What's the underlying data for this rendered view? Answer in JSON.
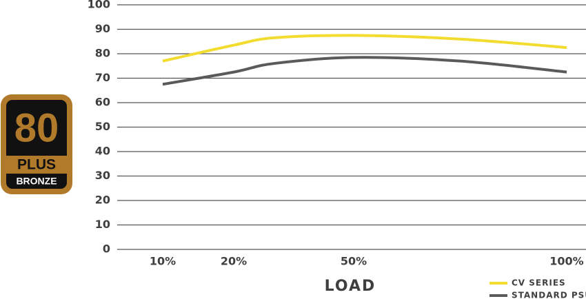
{
  "chart_data": {
    "type": "line",
    "x_label": "LOAD",
    "x": [
      10,
      20,
      30,
      50,
      75,
      100
    ],
    "xlim": [
      10,
      100
    ],
    "xticks": [
      {
        "value": 10,
        "label": "10%"
      },
      {
        "value": 20,
        "label": "20%"
      },
      {
        "value": 50,
        "label": "50%"
      },
      {
        "value": 100,
        "label": "100%"
      }
    ],
    "ylim": [
      0,
      100
    ],
    "yticks": [
      0,
      10,
      20,
      30,
      40,
      50,
      60,
      70,
      80,
      90,
      100
    ],
    "grid": true,
    "legend": "bottom-right",
    "series": [
      {
        "name": "CV SERIES",
        "color": "#f2dc2f",
        "values": [
          77,
          83.5,
          86.5,
          87.5,
          86,
          82.5
        ]
      },
      {
        "name": "STANDARD PSU",
        "color": "#5a5a5a",
        "values": [
          67.5,
          72.5,
          76,
          78.5,
          77,
          72.5
        ]
      }
    ]
  },
  "badge": {
    "number": "80",
    "brand": "PLUS",
    "level": "BRONZE"
  }
}
